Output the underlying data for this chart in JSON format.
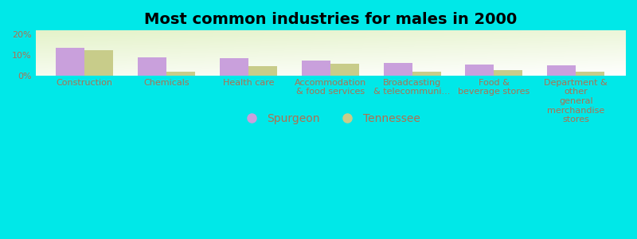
{
  "title": "Most common industries for males in 2000",
  "categories": [
    "Construction",
    "Chemicals",
    "Health care",
    "Accommodation\n& food services",
    "Broadcasting\n& telecommuni...",
    "Food &\nbeverage stores",
    "Department &\nother\ngeneral\nmerchandise\nstores"
  ],
  "spurgeon_values": [
    13.5,
    9.0,
    8.5,
    7.5,
    6.0,
    5.5,
    5.0
  ],
  "tennessee_values": [
    12.5,
    1.8,
    4.5,
    5.8,
    1.8,
    2.8,
    1.8
  ],
  "spurgeon_color": "#c9a0dc",
  "tennessee_color": "#c8cc8a",
  "background_color": "#00e8e8",
  "ylabel_ticks": [
    "0%",
    "10%",
    "20%"
  ],
  "yticks": [
    0,
    10,
    20
  ],
  "ylim": [
    0,
    22
  ],
  "bar_width": 0.35,
  "title_fontsize": 14,
  "tick_label_fontsize": 8,
  "legend_fontsize": 10,
  "tick_color": "#b07050"
}
